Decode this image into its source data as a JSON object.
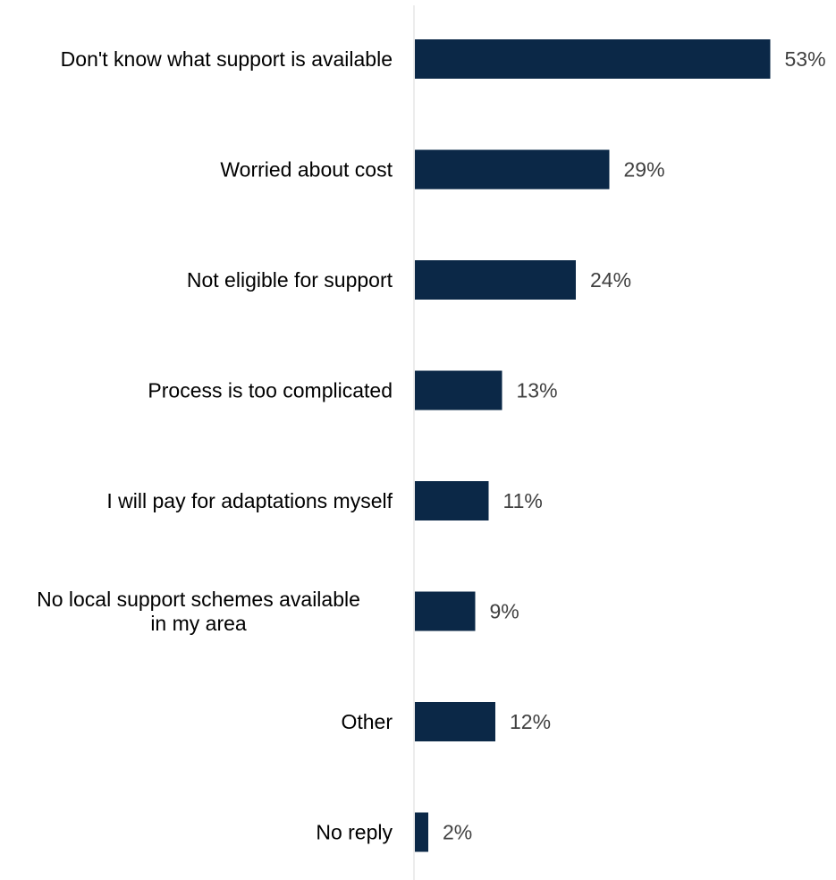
{
  "chart_data": {
    "type": "bar",
    "orientation": "horizontal",
    "categories": [
      [
        "Don't know what support is available"
      ],
      [
        "Worried about cost"
      ],
      [
        "Not eligible for support"
      ],
      [
        "Process is too complicated"
      ],
      [
        "I will pay for adaptations myself"
      ],
      [
        "No local support schemes available",
        "in my area"
      ],
      [
        "Other"
      ],
      [
        "No reply"
      ]
    ],
    "values": [
      53,
      29,
      24,
      13,
      11,
      9,
      12,
      2
    ],
    "value_labels": [
      "53%",
      "29%",
      "24%",
      "13%",
      "11%",
      "9%",
      "12%",
      "2%"
    ],
    "unit": "%",
    "xlim": [
      0,
      60
    ],
    "grid": false,
    "legend": "none",
    "colors": {
      "bar": "#0b2847",
      "axis": "#d9d9d9",
      "label": "#000000",
      "value_label": "#404040"
    }
  }
}
